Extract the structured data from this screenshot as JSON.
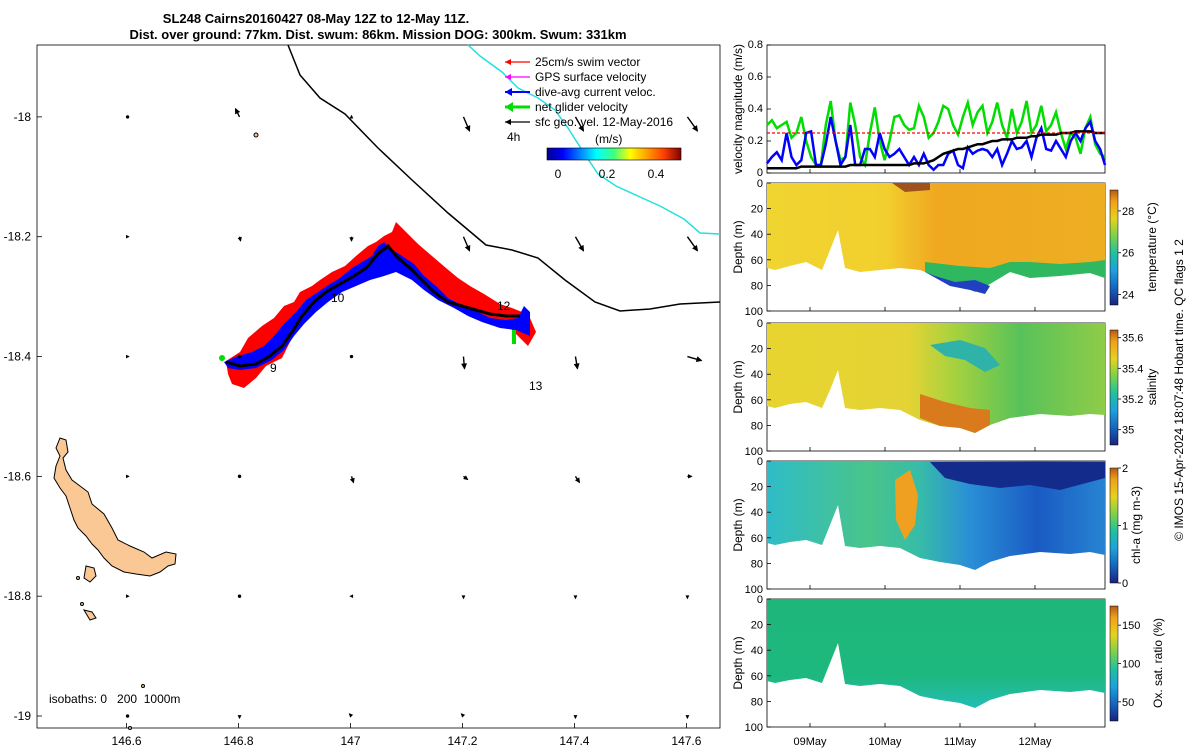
{
  "title": {
    "line1": "SL248 Cairns20160427 08-May 12Z to 12-May 11Z.",
    "line2": "Dist. over ground: 77km. Dist. swum: 86km. Mission DOG: 300km. Swum: 331km"
  },
  "map": {
    "x_ticks": [
      "146.6",
      "146.8",
      "147",
      "147.2",
      "147.4",
      "147.6"
    ],
    "x_values": [
      146.6,
      146.8,
      147.0,
      147.2,
      147.4,
      147.6
    ],
    "y_ticks": [
      "-18",
      "-18.2",
      "-18.4",
      "-18.6",
      "-18.8",
      "-19"
    ],
    "y_values": [
      -18.0,
      -18.2,
      -18.4,
      -18.6,
      -18.8,
      -19.0
    ],
    "xlim": [
      146.44,
      147.66
    ],
    "ylim": [
      -19.02,
      -17.88
    ],
    "legend": [
      {
        "label": "25cm/s swim vector",
        "color": "#ff0000"
      },
      {
        "label": "GPS surface velocity",
        "color": "#ff00ff"
      },
      {
        "label": "dive-avg current veloc.",
        "color": "#0000ff"
      },
      {
        "label": "net glider velocity",
        "color": "#00dd00"
      },
      {
        "label": "sfc geo. vel. 12-May-2016",
        "color": "#000000"
      }
    ],
    "interval_label": "4h",
    "colorbar_unit": "(m/s)",
    "colorbar_ticks": [
      "0",
      "0.2",
      "0.4"
    ],
    "day_labels": [
      "9",
      "10",
      "12",
      "13"
    ],
    "isobaths_label": "isobaths: 0   200  1000m",
    "colors": {
      "land": "#fac894",
      "track_red": "#ff0000",
      "track_blue": "#0000ff",
      "cyan": "#22e0e0"
    }
  },
  "side_note": "© IMOS 15-Apr-2024 18:07:48 Hobart time. QC flags 1  2",
  "chart_data": [
    {
      "type": "line",
      "ylabel": "velocity magnitude (m/s)",
      "ylim": [
        0,
        0.8
      ],
      "y_ticks": [
        "0",
        "0.2",
        "0.4",
        "0.6",
        "0.8"
      ],
      "x_ticks": [
        "09May",
        "10May",
        "11May",
        "12May"
      ],
      "series": [
        {
          "color": "#00dd00",
          "values": [
            0.3,
            0.33,
            0.28,
            0.3,
            0.32,
            0.22,
            0.25,
            0.35,
            0.2,
            0.1,
            0.05,
            0.05,
            0.3,
            0.45,
            0.2,
            0.08,
            0.1,
            0.44,
            0.3,
            0.1,
            0.05,
            0.25,
            0.41,
            0.2,
            0.08,
            0.2,
            0.35,
            0.36,
            0.3,
            0.27,
            0.28,
            0.42,
            0.35,
            0.22,
            0.25,
            0.32,
            0.42,
            0.4,
            0.3,
            0.24,
            0.35,
            0.44,
            0.3,
            0.38,
            0.42,
            0.25,
            0.32,
            0.44,
            0.3,
            0.22,
            0.4,
            0.25,
            0.32,
            0.45,
            0.25,
            0.3,
            0.42,
            0.26,
            0.3,
            0.38,
            0.25,
            0.15,
            0.25,
            0.22,
            0.12,
            0.28,
            0.35,
            0.18,
            0.12,
            0.1
          ]
        },
        {
          "color": "#0000ff",
          "values": [
            0.06,
            0.1,
            0.13,
            0.08,
            0.25,
            0.1,
            0.05,
            0.08,
            0.25,
            0.26,
            0.05,
            0.05,
            0.18,
            0.35,
            0.2,
            0.05,
            0.1,
            0.3,
            0.05,
            0.05,
            0.15,
            0.15,
            0.1,
            0.25,
            0.15,
            0.1,
            0.12,
            0.15,
            0.1,
            0.05,
            0.1,
            0.05,
            0.12,
            0.05,
            0.02,
            0.05,
            0.05,
            0.12,
            0.14,
            0.05,
            0.03,
            0.16,
            0.12,
            0.14,
            0.15,
            0.14,
            0.1,
            0.15,
            0.05,
            0.12,
            0.2,
            0.15,
            0.16,
            0.2,
            0.1,
            0.22,
            0.28,
            0.15,
            0.14,
            0.2,
            0.15,
            0.1,
            0.2,
            0.25,
            0.2,
            0.28,
            0.32,
            0.2,
            0.15,
            0.05
          ]
        },
        {
          "color": "#000000",
          "values": [
            0.03,
            0.03,
            0.03,
            0.03,
            0.03,
            0.03,
            0.03,
            0.04,
            0.04,
            0.04,
            0.04,
            0.04,
            0.04,
            0.04,
            0.04,
            0.04,
            0.04,
            0.05,
            0.05,
            0.05,
            0.05,
            0.05,
            0.05,
            0.05,
            0.05,
            0.05,
            0.05,
            0.05,
            0.05,
            0.05,
            0.06,
            0.06,
            0.06,
            0.07,
            0.08,
            0.1,
            0.12,
            0.13,
            0.14,
            0.15,
            0.15,
            0.16,
            0.17,
            0.18,
            0.18,
            0.19,
            0.2,
            0.2,
            0.21,
            0.21,
            0.21,
            0.22,
            0.22,
            0.22,
            0.23,
            0.23,
            0.24,
            0.24,
            0.24,
            0.24,
            0.25,
            0.25,
            0.25,
            0.26,
            0.26,
            0.26,
            0.26,
            0.25,
            0.25,
            0.25
          ]
        },
        {
          "color": "#ff0000",
          "dashed": true,
          "values": [
            0.25,
            0.25,
            0.25,
            0.25,
            0.25,
            0.25,
            0.25,
            0.25,
            0.25,
            0.25,
            0.25,
            0.25,
            0.25,
            0.25,
            0.25,
            0.25,
            0.25,
            0.25,
            0.25,
            0.25,
            0.25,
            0.25,
            0.25,
            0.25,
            0.25,
            0.25,
            0.25,
            0.25,
            0.25,
            0.25,
            0.25,
            0.25,
            0.25,
            0.25,
            0.25,
            0.25,
            0.25,
            0.25,
            0.25,
            0.25,
            0.25,
            0.25,
            0.25,
            0.25,
            0.25,
            0.25,
            0.25,
            0.25,
            0.25,
            0.25,
            0.25,
            0.25,
            0.25,
            0.25,
            0.25,
            0.25,
            0.25,
            0.25,
            0.25,
            0.25,
            0.25,
            0.25,
            0.25,
            0.25,
            0.25,
            0.25,
            0.25,
            0.25,
            0.25,
            0.25
          ]
        }
      ]
    },
    {
      "type": "heatmap",
      "ylabel": "Depth (m)",
      "clabel": "temperature (°C)",
      "clim": [
        23.5,
        29
      ],
      "c_ticks": [
        "24",
        "26",
        "28"
      ],
      "c_values": [
        24,
        26,
        28
      ],
      "depth_ticks": [
        "0",
        "20",
        "40",
        "60",
        "80",
        "100"
      ],
      "x_ticks": [
        "09May",
        "10May",
        "11May",
        "12May"
      ]
    },
    {
      "type": "heatmap",
      "ylabel": "Depth (m)",
      "clabel": "salinity",
      "clim": [
        34.9,
        35.65
      ],
      "c_ticks": [
        "35",
        "35.2",
        "35.4",
        "35.6"
      ],
      "c_values": [
        35.0,
        35.2,
        35.4,
        35.6
      ],
      "depth_ticks": [
        "0",
        "20",
        "40",
        "60",
        "80",
        "100"
      ],
      "x_ticks": [
        "09May",
        "10May",
        "11May",
        "12May"
      ]
    },
    {
      "type": "heatmap",
      "ylabel": "Depth (m)",
      "clabel": "chl-a (mg m-3)",
      "clim": [
        0,
        2
      ],
      "c_ticks": [
        "0",
        "1",
        "2"
      ],
      "c_values": [
        0,
        1,
        2
      ],
      "depth_ticks": [
        "0",
        "20",
        "40",
        "60",
        "80",
        "100"
      ],
      "x_ticks": [
        "09May",
        "10May",
        "11May",
        "12May"
      ]
    },
    {
      "type": "heatmap",
      "ylabel": "Depth (m)",
      "clabel": "Ox. sat. ratio (%)",
      "clim": [
        25,
        175
      ],
      "c_ticks": [
        "50",
        "100",
        "150"
      ],
      "c_values": [
        50,
        100,
        150
      ],
      "depth_ticks": [
        "0",
        "20",
        "40",
        "60",
        "80",
        "100"
      ],
      "x_ticks": [
        "09May",
        "10May",
        "11May",
        "12May"
      ]
    }
  ]
}
